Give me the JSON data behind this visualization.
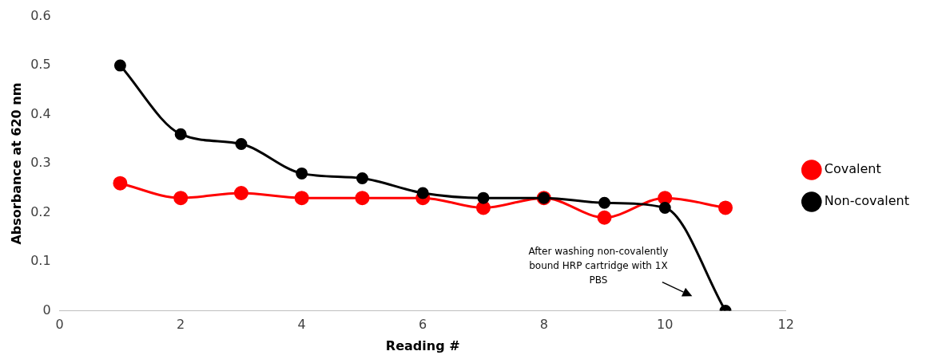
{
  "chart_data": {
    "type": "line",
    "xlabel": "Reading #",
    "ylabel": "Absorbance at 620 nm",
    "x": [
      1,
      2,
      3,
      4,
      5,
      6,
      7,
      8,
      9,
      10,
      11
    ],
    "series": [
      {
        "name": "Covalent",
        "color": "#ff0000",
        "values": [
          0.26,
          0.23,
          0.24,
          0.23,
          0.23,
          0.23,
          0.21,
          0.23,
          0.19,
          0.23,
          0.21
        ]
      },
      {
        "name": "Non-covalent",
        "color": "#000000",
        "values": [
          0.5,
          0.36,
          0.34,
          0.28,
          0.27,
          0.24,
          0.23,
          0.23,
          0.22,
          0.21,
          0
        ]
      }
    ],
    "xlim": [
      0,
      12
    ],
    "xticks": [
      0,
      2,
      4,
      6,
      8,
      10,
      12
    ],
    "ylim": [
      0,
      0.6
    ],
    "yticks": [
      0,
      0.1,
      0.2,
      0.3,
      0.4,
      0.5,
      0.6
    ],
    "annotations": [
      "After washing non-covalently bound HRP cartridge with 1X PBS"
    ],
    "legend": "right",
    "marker": "circle",
    "grid": false
  }
}
